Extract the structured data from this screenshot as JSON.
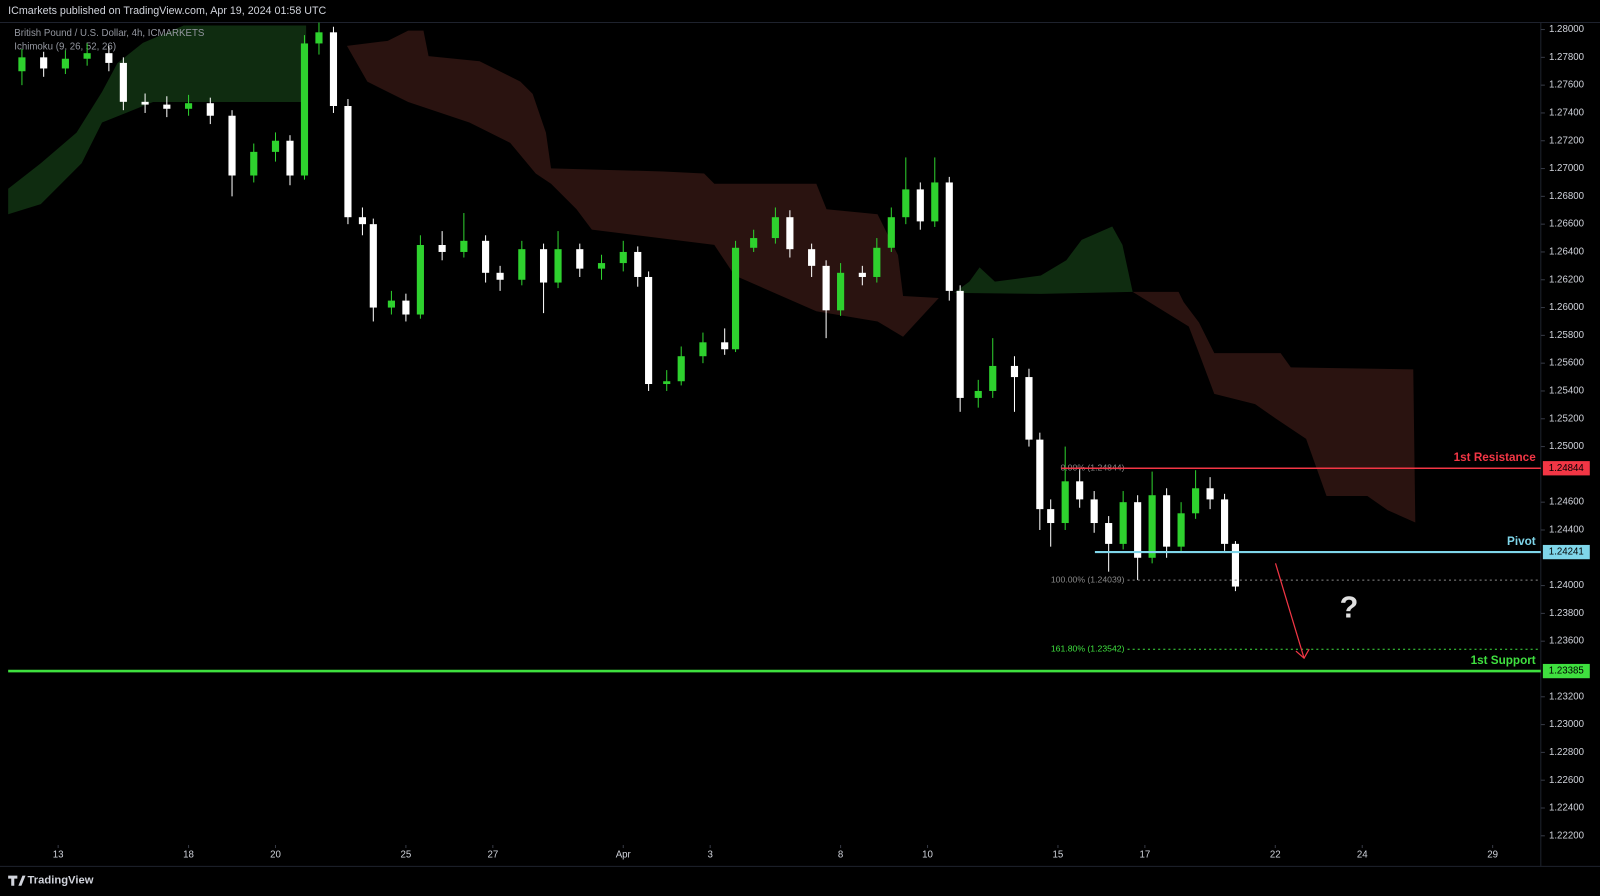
{
  "header": "ICmarkets published on TradingView.com, Apr 19, 2024 01:58 UTC",
  "footer": "TradingView",
  "chart_data": {
    "type": "candlestick",
    "title": "British Pound / U.S. Dollar, 4h, ICMARKETS",
    "indicator": "Ichimoku (9, 26, 52, 26)",
    "x": [
      -5,
      -2,
      1,
      4,
      7,
      9,
      12,
      15,
      18,
      21,
      24,
      27,
      30,
      32,
      34,
      36,
      38,
      40,
      42,
      43.5,
      46,
      48,
      50,
      53,
      56,
      59,
      61,
      64,
      67,
      69,
      72,
      75,
      78,
      80,
      81.5,
      84,
      86,
      89,
      92,
      93.5,
      96,
      99,
      101,
      104,
      106,
      108,
      111,
      113,
      115,
      117,
      119,
      121,
      123,
      124.5,
      127,
      129,
      132,
      134,
      135.5,
      137,
      139,
      141,
      143,
      145,
      147,
      149,
      151,
      153,
      155,
      157,
      159,
      161,
      162.5
    ],
    "open": [
      1.277,
      1.278,
      1.2772,
      1.2779,
      1.2783,
      1.2776,
      1.2748,
      1.2746,
      1.2743,
      1.2747,
      1.2738,
      1.2695,
      1.2712,
      1.272,
      1.2695,
      1.279,
      1.2798,
      1.2745,
      1.2665,
      1.266,
      1.26,
      1.2605,
      1.2595,
      1.2645,
      1.264,
      1.2648,
      1.2625,
      1.262,
      1.2642,
      1.2618,
      1.2642,
      1.2628,
      1.2632,
      1.264,
      1.2622,
      1.2545,
      1.2547,
      1.2565,
      1.2575,
      1.257,
      1.2643,
      1.265,
      1.2665,
      1.2642,
      1.263,
      1.2598,
      1.2625,
      1.2622,
      1.2643,
      1.2665,
      1.2685,
      1.2662,
      1.269,
      1.2612,
      1.2535,
      1.254,
      1.2558,
      1.255,
      1.2505,
      1.2455,
      1.2445,
      1.2475,
      1.2462,
      1.2445,
      1.243,
      1.246,
      1.242,
      1.2465,
      1.2428,
      1.2452,
      1.247,
      1.2462,
      1.243
    ],
    "high": [
      1.2786,
      1.2784,
      1.2785,
      1.279,
      1.2788,
      1.278,
      1.2754,
      1.2752,
      1.2753,
      1.2751,
      1.2742,
      1.2718,
      1.2726,
      1.2724,
      1.2796,
      1.2805,
      1.2802,
      1.275,
      1.2672,
      1.2664,
      1.2612,
      1.261,
      1.2652,
      1.2655,
      1.2668,
      1.2652,
      1.263,
      1.2648,
      1.2646,
      1.2655,
      1.2646,
      1.2638,
      1.2648,
      1.2644,
      1.2626,
      1.2555,
      1.2572,
      1.2582,
      1.2585,
      1.2648,
      1.2656,
      1.2672,
      1.267,
      1.2646,
      1.2634,
      1.2632,
      1.263,
      1.265,
      1.2672,
      1.2708,
      1.269,
      1.2708,
      1.2694,
      1.2616,
      1.2548,
      1.2578,
      1.2565,
      1.2556,
      1.251,
      1.2462,
      1.25,
      1.2485,
      1.2468,
      1.245,
      1.2468,
      1.2465,
      1.2482,
      1.247,
      1.246,
      1.2483,
      1.2478,
      1.2466,
      1.2432
    ],
    "low": [
      1.276,
      1.2766,
      1.2768,
      1.2774,
      1.277,
      1.2742,
      1.274,
      1.2737,
      1.2738,
      1.2732,
      1.268,
      1.269,
      1.2705,
      1.2688,
      1.2692,
      1.2782,
      1.274,
      1.266,
      1.2652,
      1.259,
      1.2595,
      1.259,
      1.2592,
      1.2634,
      1.2636,
      1.2618,
      1.2612,
      1.2616,
      1.2596,
      1.2614,
      1.2622,
      1.262,
      1.2626,
      1.2615,
      1.254,
      1.254,
      1.2544,
      1.256,
      1.2566,
      1.2568,
      1.264,
      1.2646,
      1.2636,
      1.2622,
      1.2578,
      1.2594,
      1.2616,
      1.2618,
      1.264,
      1.266,
      1.2656,
      1.2658,
      1.2605,
      1.2525,
      1.2528,
      1.2535,
      1.2525,
      1.25,
      1.244,
      1.2428,
      1.244,
      1.2456,
      1.2438,
      1.241,
      1.2426,
      1.2404,
      1.2416,
      1.242,
      1.2424,
      1.2448,
      1.2455,
      1.2425,
      1.2396
    ],
    "close": [
      1.278,
      1.2772,
      1.2779,
      1.2783,
      1.2776,
      1.2748,
      1.2746,
      1.2743,
      1.2747,
      1.2738,
      1.2695,
      1.2712,
      1.272,
      1.2695,
      1.279,
      1.2798,
      1.2745,
      1.2665,
      1.266,
      1.26,
      1.2605,
      1.2595,
      1.2645,
      1.264,
      1.2648,
      1.2625,
      1.262,
      1.2642,
      1.2618,
      1.2642,
      1.2628,
      1.2632,
      1.264,
      1.2622,
      1.2545,
      1.2547,
      1.2565,
      1.2575,
      1.257,
      1.2643,
      1.265,
      1.2665,
      1.2642,
      1.263,
      1.2598,
      1.2625,
      1.2622,
      1.2643,
      1.2665,
      1.2685,
      1.2662,
      1.269,
      1.2612,
      1.2535,
      1.254,
      1.2558,
      1.255,
      1.2505,
      1.2455,
      1.2445,
      1.2475,
      1.2462,
      1.2445,
      1.243,
      1.246,
      1.242,
      1.2465,
      1.2428,
      1.2452,
      1.247,
      1.2462,
      1.243,
      1.23993
    ],
    "up_color": "#2ed12e",
    "down_color": "#ffffff",
    "xlim": [
      -6.9,
      204.65
    ],
    "xticks": [
      {
        "value": 0,
        "label": "13"
      },
      {
        "value": 18,
        "label": "18"
      },
      {
        "value": 30,
        "label": "20"
      },
      {
        "value": 48,
        "label": "25"
      },
      {
        "value": 60,
        "label": "27"
      },
      {
        "value": 78,
        "label": "Apr"
      },
      {
        "value": 90,
        "label": "3"
      },
      {
        "value": 108,
        "label": "8"
      },
      {
        "value": 120,
        "label": "10"
      },
      {
        "value": 138,
        "label": "15"
      },
      {
        "value": 150,
        "label": "17"
      },
      {
        "value": 168,
        "label": "22"
      },
      {
        "value": 180,
        "label": "24"
      },
      {
        "value": 198,
        "label": "29"
      }
    ],
    "ylim": [
      1.22134,
      1.28051
    ],
    "yticks": [
      {
        "value": 1.28,
        "label": "1.28000"
      },
      {
        "value": 1.278,
        "label": "1.27800"
      },
      {
        "value": 1.276,
        "label": "1.27600"
      },
      {
        "value": 1.274,
        "label": "1.27400"
      },
      {
        "value": 1.272,
        "label": "1.27200"
      },
      {
        "value": 1.27,
        "label": "1.27000"
      },
      {
        "value": 1.268,
        "label": "1.26800"
      },
      {
        "value": 1.266,
        "label": "1.26600"
      },
      {
        "value": 1.264,
        "label": "1.26400"
      },
      {
        "value": 1.262,
        "label": "1.26200"
      },
      {
        "value": 1.26,
        "label": "1.26000"
      },
      {
        "value": 1.258,
        "label": "1.25800"
      },
      {
        "value": 1.256,
        "label": "1.25600"
      },
      {
        "value": 1.254,
        "label": "1.25400"
      },
      {
        "value": 1.252,
        "label": "1.25200"
      },
      {
        "value": 1.25,
        "label": "1.25000"
      },
      {
        "value": 1.246,
        "label": "1.24600"
      },
      {
        "value": 1.244,
        "label": "1.24400"
      },
      {
        "value": 1.24,
        "label": "1.24000"
      },
      {
        "value": 1.238,
        "label": "1.23800"
      },
      {
        "value": 1.236,
        "label": "1.23600"
      },
      {
        "value": 1.232,
        "label": "1.23200"
      },
      {
        "value": 1.23,
        "label": "1.23000"
      },
      {
        "value": 1.228,
        "label": "1.22800"
      },
      {
        "value": 1.226,
        "label": "1.22600"
      },
      {
        "value": 1.224,
        "label": "1.22400"
      },
      {
        "value": 1.222,
        "label": "1.22200"
      }
    ],
    "levels": [
      {
        "name": "1st Resistance",
        "value": 1.24844,
        "color": "#f23645"
      },
      {
        "name": "Pivot",
        "value": 1.24241,
        "color": "#7fd6ea"
      },
      {
        "name": "1st Support",
        "value": 1.23385,
        "color": "#3fe03f"
      }
    ],
    "fibonacci": [
      {
        "value": 1.24844,
        "label": "0.00% (1.24844)",
        "color": "#8a8a8a"
      },
      {
        "value": 1.24039,
        "label": "100.00% (1.24039)",
        "color": "#8a8a8a"
      },
      {
        "value": 1.23542,
        "label": "161.80% (1.23542)",
        "color": "#3fe03f"
      }
    ],
    "annotation": "?"
  }
}
